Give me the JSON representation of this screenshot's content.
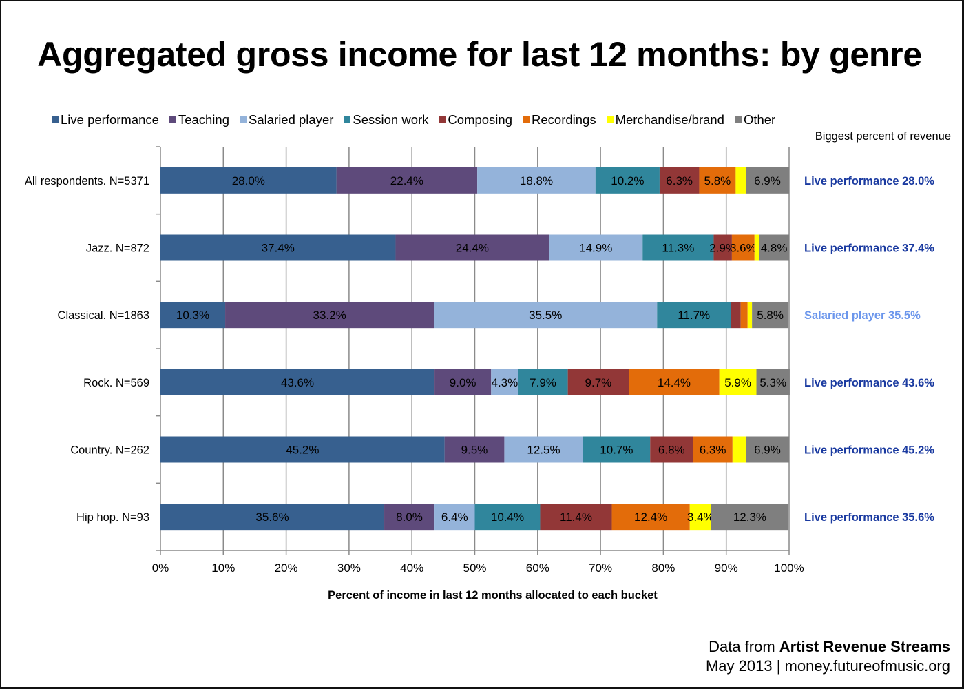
{
  "title": "Aggregated gross income for last 12 months: by genre",
  "side_header": "Biggest percent of revenue",
  "source": {
    "prefix": "Data from ",
    "name": "Artist Revenue Streams",
    "line2": "May 2013 | money.futureofmusic.org"
  },
  "chart_data": {
    "type": "bar",
    "orientation": "horizontal",
    "stacked": true,
    "title": "Aggregated gross income for last 12 months: by genre",
    "xlabel": "Percent of income in last 12 months allocated to each bucket",
    "ylabel": "",
    "xlim": [
      0,
      100
    ],
    "x_ticks": [
      "0%",
      "10%",
      "20%",
      "30%",
      "40%",
      "50%",
      "60%",
      "70%",
      "80%",
      "90%",
      "100%"
    ],
    "grid": "vertical",
    "legend_position": "top",
    "categories": [
      "All respondents. N=5371",
      "Jazz. N=872",
      "Classical. N=1863",
      "Rock. N=569",
      "Country. N=262",
      "Hip hop. N=93"
    ],
    "series": [
      {
        "name": "Live performance",
        "color": "#37608f",
        "values": [
          28.0,
          37.4,
          10.3,
          43.6,
          45.2,
          35.6
        ],
        "labels": [
          "28.0%",
          "37.4%",
          "10.3%",
          "43.6%",
          "45.2%",
          "35.6%"
        ]
      },
      {
        "name": "Teaching",
        "color": "#5e4a7b",
        "values": [
          22.4,
          24.4,
          33.2,
          9.0,
          9.5,
          8.0
        ],
        "labels": [
          "22.4%",
          "24.4%",
          "33.2%",
          "9.0%",
          "9.5%",
          "8.0%"
        ]
      },
      {
        "name": "Salaried player",
        "color": "#94b3da",
        "values": [
          18.8,
          14.9,
          35.5,
          4.3,
          12.5,
          6.4
        ],
        "labels": [
          "18.8%",
          "14.9%",
          "35.5%",
          "4.3%",
          "12.5%",
          "6.4%"
        ]
      },
      {
        "name": "Session work",
        "color": "#30869c",
        "values": [
          10.2,
          11.3,
          11.7,
          7.9,
          10.7,
          10.4
        ],
        "labels": [
          "10.2%",
          "11.3%",
          "11.7%",
          "7.9%",
          "10.7%",
          "10.4%"
        ]
      },
      {
        "name": "Composing",
        "color": "#923737",
        "values": [
          6.3,
          2.9,
          1.6,
          9.7,
          6.8,
          11.4
        ],
        "labels": [
          "6.3%",
          "2.9%",
          "",
          "9.7%",
          "6.8%",
          "11.4%"
        ]
      },
      {
        "name": "Recordings",
        "color": "#e36c0a",
        "values": [
          5.8,
          3.6,
          1.1,
          14.4,
          6.3,
          12.4
        ],
        "labels": [
          "5.8%",
          "3.6%",
          "",
          "14.4%",
          "6.3%",
          "12.4%"
        ]
      },
      {
        "name": "Merchandise/brand",
        "color": "#ffff00",
        "values": [
          1.6,
          0.7,
          0.7,
          5.9,
          2.1,
          3.4
        ],
        "labels": [
          "",
          "",
          "",
          "5.9%",
          "",
          "3.4%"
        ]
      },
      {
        "name": "Other",
        "color": "#7f7f7f",
        "values": [
          6.9,
          4.8,
          5.8,
          5.3,
          6.9,
          12.3
        ],
        "labels": [
          "6.9%",
          "4.8%",
          "5.8%",
          "5.3%",
          "6.9%",
          "12.3%"
        ]
      }
    ],
    "biggest_share": [
      {
        "text": "Live performance 28.0%",
        "color": "#1a3aa0"
      },
      {
        "text": "Live performance 37.4%",
        "color": "#1a3aa0"
      },
      {
        "text": "Salaried player 35.5%",
        "color": "#6b96ec"
      },
      {
        "text": "Live performance 43.6%",
        "color": "#1a3aa0"
      },
      {
        "text": "Live performance 45.2%",
        "color": "#1a3aa0"
      },
      {
        "text": "Live performance 35.6%",
        "color": "#1a3aa0"
      }
    ]
  }
}
